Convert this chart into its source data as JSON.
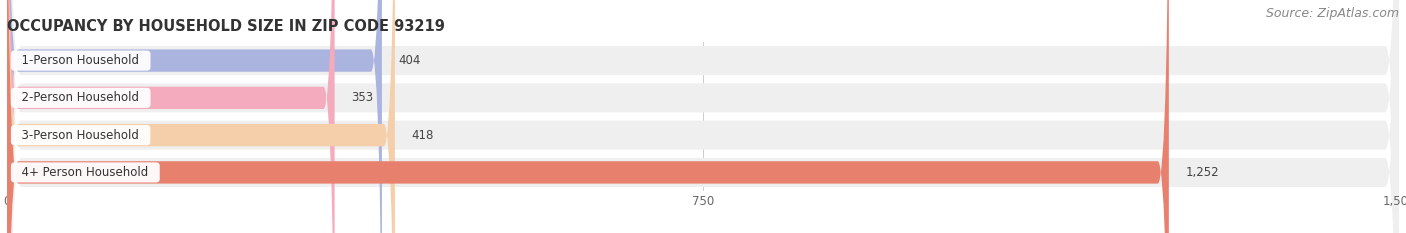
{
  "title": "OCCUPANCY BY HOUSEHOLD SIZE IN ZIP CODE 93219",
  "source": "Source: ZipAtlas.com",
  "categories": [
    "1-Person Household",
    "2-Person Household",
    "3-Person Household",
    "4+ Person Household"
  ],
  "values": [
    404,
    353,
    418,
    1252
  ],
  "bar_colors": [
    "#aab4de",
    "#f5abbe",
    "#f5cfaa",
    "#e8806e"
  ],
  "background_color": "#ffffff",
  "row_bg_color": "#efefef",
  "xlim": [
    0,
    1500
  ],
  "xticks": [
    0,
    750,
    1500
  ],
  "xticklabels": [
    "0",
    "750",
    "1,500"
  ],
  "value_labels": [
    "404",
    "353",
    "418",
    "1,252"
  ],
  "title_fontsize": 10.5,
  "label_fontsize": 8.5,
  "tick_fontsize": 8.5,
  "source_fontsize": 9
}
